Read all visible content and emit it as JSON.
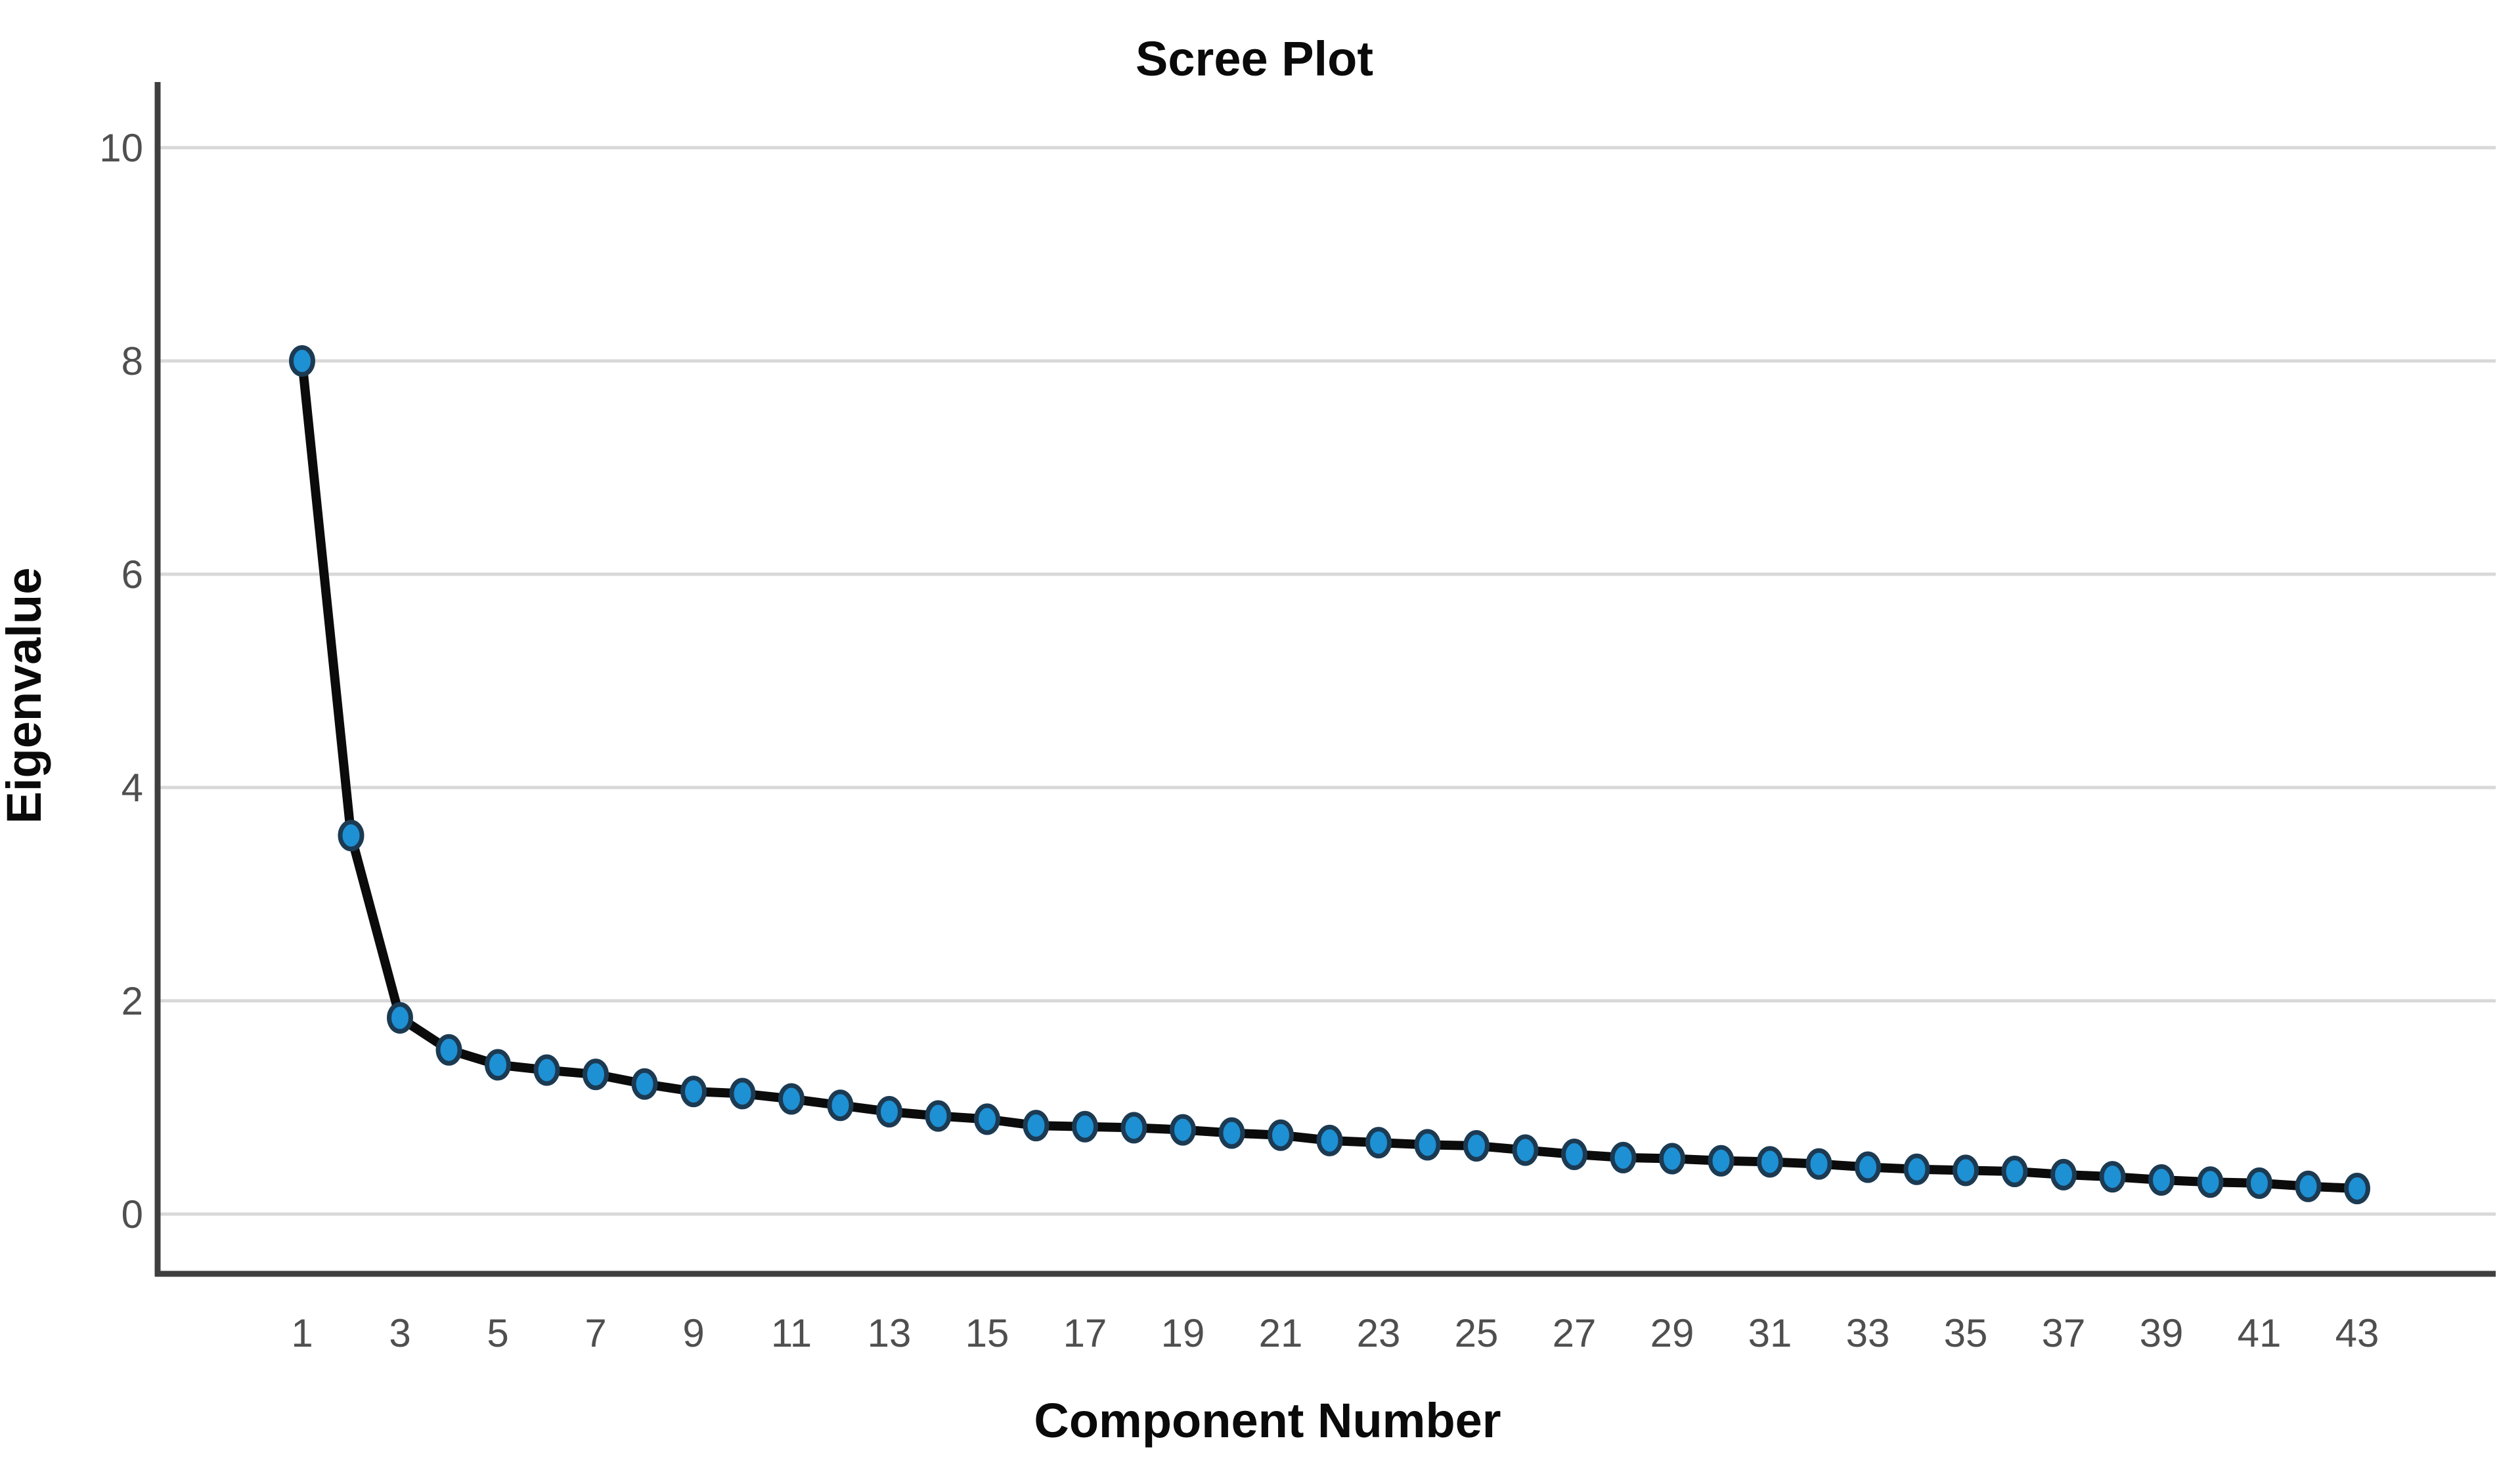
{
  "chart_data": {
    "type": "line",
    "title": "Scree Plot",
    "xlabel": "Component Number",
    "ylabel": "Eigenvalue",
    "x": [
      1,
      2,
      3,
      4,
      5,
      6,
      7,
      8,
      9,
      10,
      11,
      12,
      13,
      14,
      15,
      16,
      17,
      18,
      19,
      20,
      21,
      22,
      23,
      24,
      25,
      26,
      27,
      28,
      29,
      30,
      31,
      32,
      33,
      34,
      35,
      36,
      37,
      38,
      39,
      40,
      41,
      42,
      43
    ],
    "values": [
      8.0,
      3.55,
      1.84,
      1.54,
      1.4,
      1.35,
      1.31,
      1.22,
      1.15,
      1.13,
      1.08,
      1.02,
      0.96,
      0.92,
      0.89,
      0.83,
      0.82,
      0.81,
      0.79,
      0.76,
      0.74,
      0.69,
      0.67,
      0.65,
      0.64,
      0.6,
      0.56,
      0.53,
      0.52,
      0.5,
      0.49,
      0.47,
      0.44,
      0.42,
      0.41,
      0.4,
      0.37,
      0.35,
      0.32,
      0.3,
      0.29,
      0.26,
      0.24
    ],
    "y_ticks": [
      0,
      2,
      4,
      6,
      8,
      10
    ],
    "x_tick_labels": [
      1,
      3,
      5,
      7,
      9,
      11,
      13,
      15,
      17,
      19,
      21,
      23,
      25,
      27,
      29,
      31,
      33,
      35,
      37,
      39,
      41,
      43
    ],
    "ylim": [
      0,
      10.5
    ],
    "grid": true,
    "legend_position": "none",
    "colors": {
      "marker_fill": "#1E90D4",
      "marker_stroke": "#1C3A52",
      "line": "#0b0b0b",
      "grid": "#d8d8d8",
      "axis": "#3f3f3f",
      "tick_label": "#4f4f4f",
      "title": "#0a0a0a",
      "background": "#ffffff"
    }
  }
}
